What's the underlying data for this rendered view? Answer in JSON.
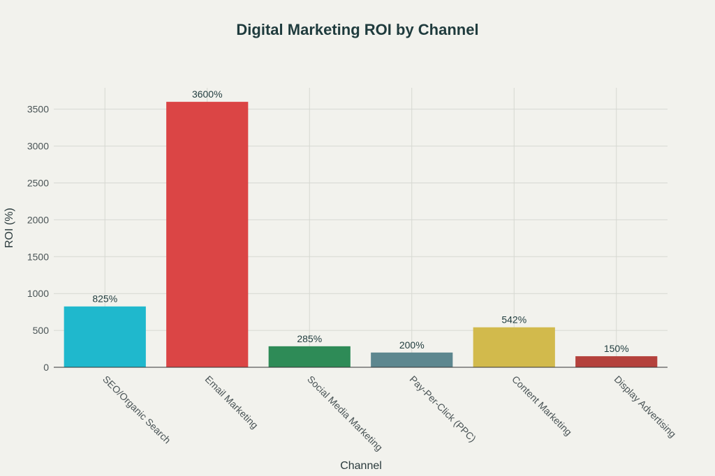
{
  "chart_data": {
    "type": "bar",
    "title": "Digital Marketing ROI by Channel",
    "xlabel": "Channel",
    "ylabel": "ROI (%)",
    "categories": [
      "SEO/Organic Search",
      "Email Marketing",
      "Social Media Marketing",
      "Pay-Per-Click (PPC)",
      "Content Marketing",
      "Display Advertising"
    ],
    "values": [
      825,
      3600,
      285,
      200,
      542,
      150
    ],
    "data_labels": [
      "825%",
      "3600%",
      "285%",
      "200%",
      "542%",
      "150%"
    ],
    "colors": [
      "#1fb8cd",
      "#db4545",
      "#2e8b57",
      "#5d878f",
      "#d2ba4c",
      "#b4413c"
    ],
    "yticks": [
      0,
      500,
      1000,
      1500,
      2000,
      2500,
      3000,
      3500
    ],
    "ylim": [
      0,
      3790
    ],
    "grid": true,
    "legend": "none"
  }
}
